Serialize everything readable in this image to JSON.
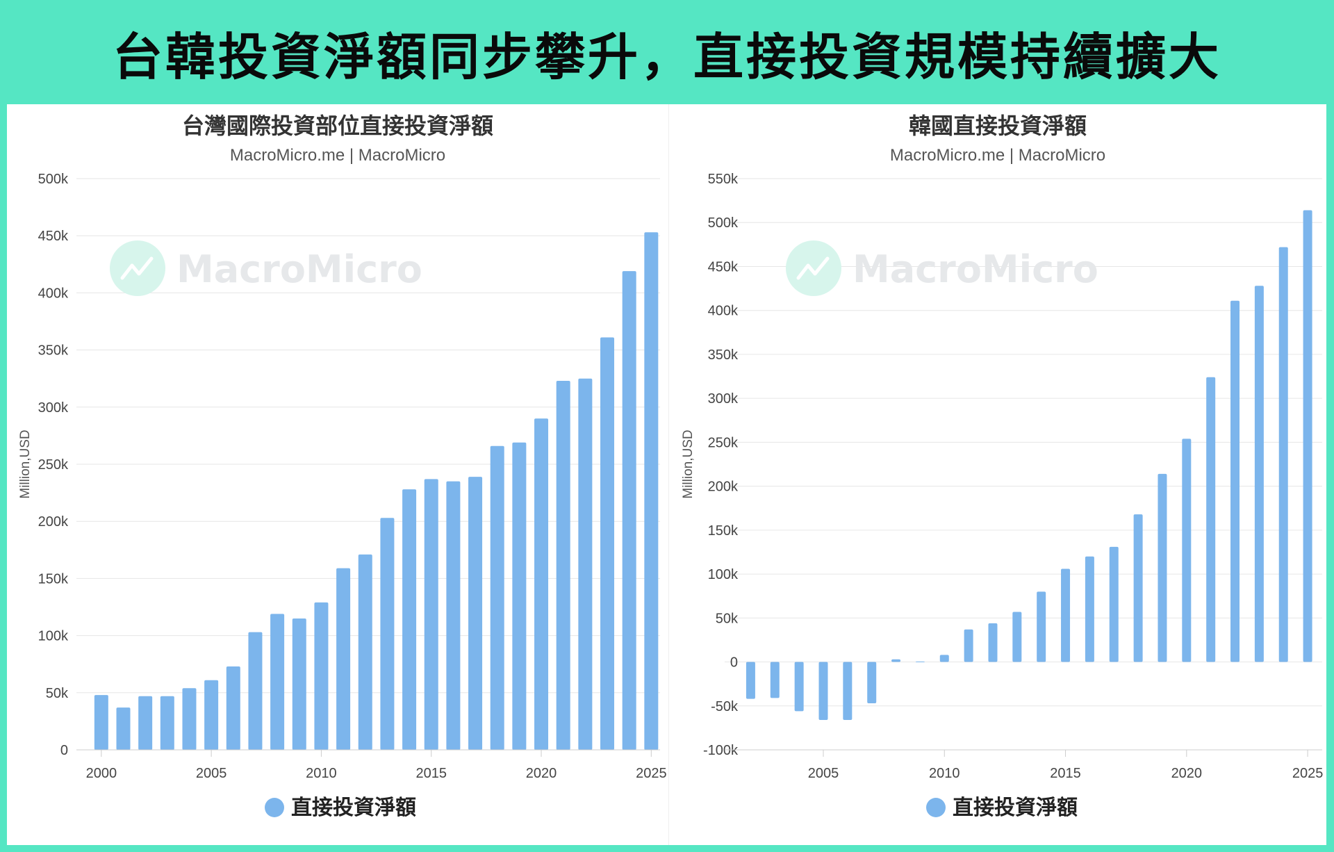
{
  "banner": {
    "title": "台韓投資淨額同步攀升，直接投資規模持續擴大"
  },
  "chart_data": [
    {
      "type": "bar",
      "title": "台灣國際投資部位直接投資淨額",
      "subtitle": "MacroMicro.me | MacroMicro",
      "watermark": "MacroMicro",
      "ylabel": "Million,USD",
      "xlabel": "",
      "color": "#7cb5ec",
      "ylim": [
        0,
        500000
      ],
      "yticks": [
        0,
        50000,
        100000,
        150000,
        200000,
        250000,
        300000,
        350000,
        400000,
        450000,
        500000
      ],
      "ytick_labels": [
        "0",
        "50k",
        "100k",
        "150k",
        "200k",
        "250k",
        "300k",
        "350k",
        "400k",
        "450k",
        "500k"
      ],
      "xlim": [
        1999.5,
        2025.4
      ],
      "xticks": [
        2000,
        2005,
        2010,
        2015,
        2020,
        2025
      ],
      "xtick_labels": [
        "2000",
        "2005",
        "2010",
        "2015",
        "2020",
        "2025"
      ],
      "grid": true,
      "legend_position": "bottom-center",
      "series": [
        {
          "name": "直接投資淨額",
          "x": [
            2000,
            2001,
            2002,
            2003,
            2004,
            2005,
            2006,
            2007,
            2008,
            2009,
            2010,
            2011,
            2012,
            2013,
            2014,
            2015,
            2016,
            2017,
            2018,
            2019,
            2020,
            2021,
            2022,
            2023,
            2024,
            2025
          ],
          "values": [
            48000,
            37000,
            47000,
            47000,
            54000,
            61000,
            73000,
            103000,
            119000,
            115000,
            129000,
            159000,
            171000,
            203000,
            228000,
            237000,
            235000,
            239000,
            266000,
            269000,
            290000,
            323000,
            325000,
            361000,
            419000,
            453000
          ]
        }
      ]
    },
    {
      "type": "bar",
      "title": "韓國直接投資淨額",
      "subtitle": "MacroMicro.me | MacroMicro",
      "watermark": "MacroMicro",
      "ylabel": "Million,USD",
      "xlabel": "",
      "color": "#7cb5ec",
      "ylim": [
        -100000,
        550000
      ],
      "yticks": [
        -100000,
        -50000,
        0,
        50000,
        100000,
        150000,
        200000,
        250000,
        300000,
        350000,
        400000,
        450000,
        500000,
        550000
      ],
      "ytick_labels": [
        "-100k",
        "-50k",
        "0",
        "50k",
        "100k",
        "150k",
        "200k",
        "250k",
        "300k",
        "350k",
        "400k",
        "450k",
        "500k",
        "550k"
      ],
      "xlim": [
        2001.5,
        2025.6
      ],
      "xticks": [
        2005,
        2010,
        2015,
        2020,
        2025
      ],
      "xtick_labels": [
        "2005",
        "2010",
        "2015",
        "2020",
        "2025"
      ],
      "grid": true,
      "legend_position": "bottom-center",
      "series": [
        {
          "name": "直接投資淨額",
          "x": [
            2002,
            2003,
            2004,
            2005,
            2006,
            2007,
            2008,
            2009,
            2010,
            2011,
            2012,
            2013,
            2014,
            2015,
            2016,
            2017,
            2018,
            2019,
            2020,
            2021,
            2022,
            2023,
            2024,
            2025
          ],
          "values": [
            -42000,
            -41000,
            -56000,
            -66000,
            -66000,
            -47000,
            3000,
            500,
            8000,
            37000,
            44000,
            57000,
            80000,
            106000,
            120000,
            131000,
            168000,
            214000,
            254000,
            324000,
            411000,
            428000,
            472000,
            514000
          ]
        }
      ]
    }
  ]
}
